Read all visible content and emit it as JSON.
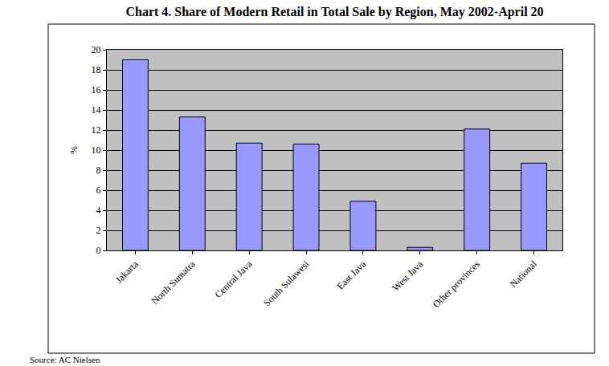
{
  "chart_data": {
    "type": "bar",
    "title": "Chart 4. Share of Modern Retail in Total Sale by Region, May 2002-April 20",
    "y_label": "%",
    "source": "Source: AC Nielsen",
    "categories": [
      "Jakarta",
      "North Sumatra",
      "Central Java",
      "South Sulawesi",
      "East Java",
      "West Java",
      "Other provinces",
      "National"
    ],
    "values": [
      19,
      13.3,
      10.7,
      10.6,
      4.9,
      0.3,
      12.1,
      8.7
    ],
    "color": "#9999ff",
    "ylim": [
      0,
      20
    ],
    "yticks": [
      0,
      2,
      4,
      6,
      8,
      10,
      12,
      14,
      16,
      18,
      20
    ],
    "grid": true
  }
}
